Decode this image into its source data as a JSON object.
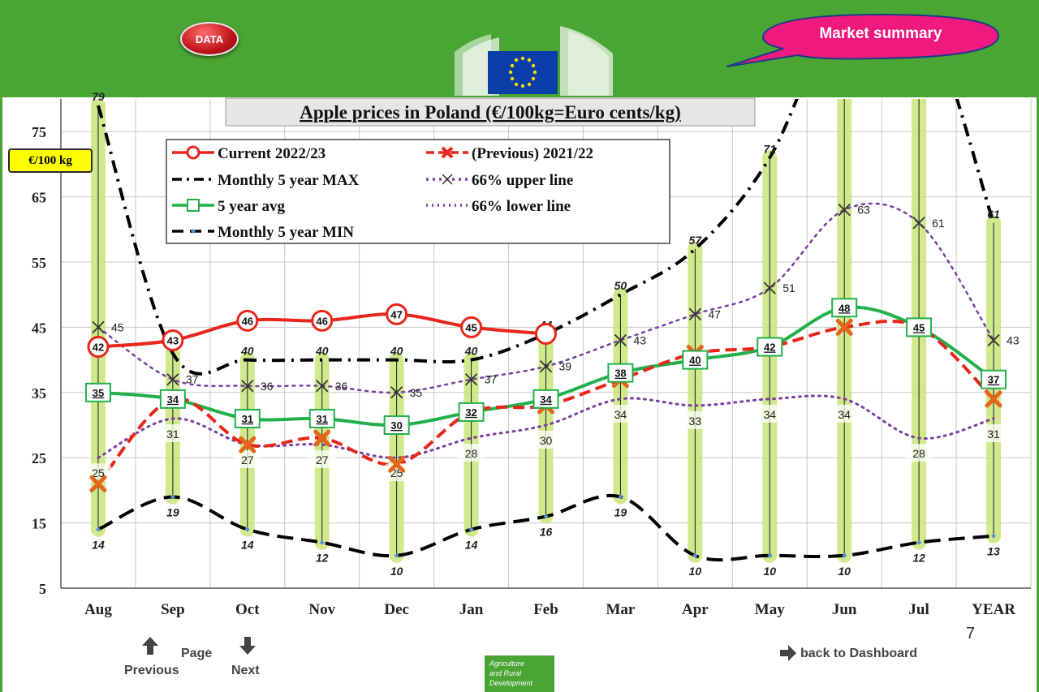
{
  "header": {
    "data_button": "DATA",
    "market_summary": "Market summary"
  },
  "unit_badge": "€/100 kg",
  "nav": {
    "previous": "Previous",
    "page": "Page",
    "next": "Next",
    "back": "back to Dashboard",
    "page_number": "7"
  },
  "footer_logo": [
    "Agriculture",
    "and Rural",
    "Development"
  ],
  "colors": {
    "header_green": "#4aa534",
    "current": "#e8261a",
    "previous": "#e8261a",
    "max": "#000000",
    "upper": "#7a3fa0",
    "lower": "#7a3fa0",
    "avg": "#22b04a",
    "min": "#000000",
    "range_glow": "#c8e67a"
  },
  "chart_data": {
    "type": "line",
    "title": "Apple prices in Poland (€/100kg=Euro cents/kg)",
    "ylabel": "€/100 kg",
    "xlabel": "",
    "ylim": [
      5,
      80
    ],
    "yticks": [
      5,
      15,
      25,
      35,
      45,
      55,
      65,
      75
    ],
    "grid": true,
    "categories": [
      "Aug",
      "Sep",
      "Oct",
      "Nov",
      "Dec",
      "Jan",
      "Feb",
      "Mar",
      "Apr",
      "May",
      "Jun",
      "Jul",
      "YEAR"
    ],
    "legend": [
      {
        "key": "current",
        "label": "Current 2022/23"
      },
      {
        "key": "previous",
        "label": "(Previous) 2021/22"
      },
      {
        "key": "max",
        "label": "Monthly 5 year MAX"
      },
      {
        "key": "upper",
        "label": "66% upper line"
      },
      {
        "key": "avg",
        "label": "5 year avg"
      },
      {
        "key": "lower",
        "label": "66% lower line"
      },
      {
        "key": "min",
        "label": "Monthly 5 year MIN"
      }
    ],
    "series": {
      "current": {
        "values": [
          42,
          43,
          46,
          46,
          47,
          45,
          44,
          null,
          null,
          null,
          null,
          null,
          null
        ],
        "labels": [
          "42",
          "43",
          "46",
          "46",
          "47",
          "45",
          "",
          "",
          "",
          "",
          "",
          "",
          ""
        ]
      },
      "previous": {
        "values": [
          21,
          34,
          27,
          28,
          24,
          32,
          33,
          37,
          41,
          42,
          45,
          45,
          34
        ]
      },
      "max": {
        "values": [
          79,
          41,
          40,
          40,
          40,
          40,
          44,
          50,
          57,
          71,
          95,
          95,
          61
        ],
        "labels": [
          "79",
          "41",
          "40",
          "40",
          "40",
          "40",
          "44",
          "50",
          "57",
          "71",
          "",
          "",
          "61"
        ]
      },
      "upper": {
        "values": [
          45,
          37,
          36,
          36,
          35,
          37,
          39,
          43,
          47,
          51,
          63,
          61,
          43
        ],
        "labels": [
          "45",
          "37",
          "36",
          "36",
          "35",
          "37",
          "39",
          "43",
          "47",
          "51",
          "63",
          "61",
          "43"
        ]
      },
      "avg": {
        "values": [
          35,
          34,
          31,
          31,
          30,
          32,
          34,
          38,
          40,
          42,
          48,
          45,
          37
        ],
        "labels": [
          "35",
          "34",
          "31",
          "31",
          "30",
          "32",
          "34",
          "38",
          "40",
          "42",
          "48",
          "45",
          "37"
        ]
      },
      "lower": {
        "values": [
          25,
          31,
          27,
          27,
          25,
          28,
          30,
          34,
          33,
          34,
          34,
          28,
          31
        ],
        "labels": [
          "25",
          "31",
          "27",
          "27",
          "25",
          "28",
          "30",
          "34",
          "33",
          "34",
          "34",
          "28",
          "31"
        ]
      },
      "min": {
        "values": [
          14,
          19,
          14,
          12,
          10,
          14,
          16,
          19,
          10,
          10,
          10,
          12,
          13
        ],
        "labels": [
          "14",
          "19",
          "14",
          "12",
          "10",
          "14",
          "16",
          "19",
          "10",
          "10",
          "10",
          "12",
          "13"
        ]
      }
    }
  }
}
